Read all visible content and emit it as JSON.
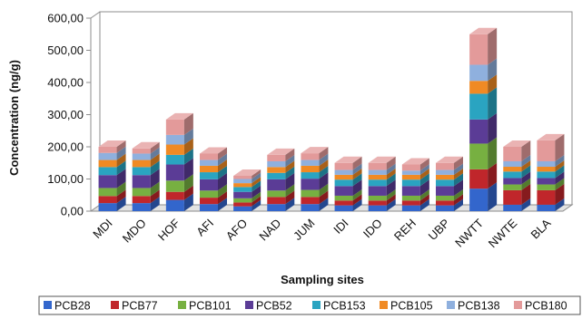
{
  "chart_data": {
    "type": "bar",
    "stacked": true,
    "three_d": true,
    "title": "",
    "xlabel": "Sampling sites",
    "ylabel": "Concentration (ng/g)",
    "ylim": [
      0,
      600
    ],
    "yticks": [
      "0,00",
      "100,00",
      "200,00",
      "300,00",
      "400,00",
      "500,00",
      "600,00"
    ],
    "grid": false,
    "legend_position": "bottom",
    "categories": [
      "MDI",
      "MDO",
      "HOF",
      "AFI",
      "AFO",
      "NAD",
      "JUM",
      "IDI",
      "IDO",
      "REH",
      "UBP",
      "NWTT",
      "NWTE",
      "BLA"
    ],
    "series": [
      {
        "name": "PCB28",
        "color": "#3366cc",
        "values": [
          25,
          25,
          35,
          22,
          15,
          22,
          22,
          18,
          18,
          18,
          18,
          70,
          20,
          20
        ]
      },
      {
        "name": "PCB77",
        "color": "#c0262b",
        "values": [
          22,
          22,
          25,
          20,
          12,
          22,
          22,
          15,
          15,
          15,
          15,
          60,
          45,
          45
        ]
      },
      {
        "name": "PCB101",
        "color": "#77b041",
        "values": [
          25,
          25,
          35,
          22,
          13,
          20,
          22,
          15,
          15,
          15,
          15,
          80,
          18,
          18
        ]
      },
      {
        "name": "PCB52",
        "color": "#5b3c96",
        "values": [
          40,
          40,
          50,
          35,
          20,
          35,
          35,
          30,
          30,
          30,
          30,
          75,
          20,
          20
        ]
      },
      {
        "name": "PCB153",
        "color": "#2aa4c1",
        "values": [
          25,
          25,
          30,
          22,
          15,
          20,
          20,
          20,
          20,
          20,
          20,
          80,
          20,
          20
        ]
      },
      {
        "name": "PCB105",
        "color": "#f08a24",
        "values": [
          22,
          22,
          32,
          20,
          12,
          18,
          20,
          15,
          15,
          15,
          15,
          40,
          15,
          15
        ]
      },
      {
        "name": "PCB138",
        "color": "#8fb0de",
        "values": [
          22,
          20,
          30,
          18,
          13,
          18,
          18,
          15,
          15,
          13,
          15,
          50,
          17,
          17
        ]
      },
      {
        "name": "PCB180",
        "color": "#e39a9a",
        "values": [
          19,
          16,
          48,
          20,
          10,
          20,
          21,
          22,
          22,
          19,
          22,
          95,
          45,
          65
        ]
      }
    ]
  }
}
